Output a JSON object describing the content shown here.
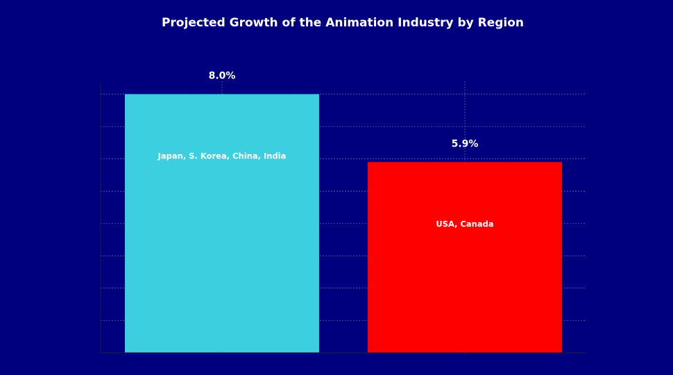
{
  "chart_data": {
    "type": "bar",
    "title": "Projected Growth of the Animation Industry by Region",
    "xlabel": "",
    "ylabel": "",
    "categories": [
      "Japan, S. Korea, China, India",
      "USA, Canada"
    ],
    "values": [
      8.0,
      5.9
    ],
    "value_labels": [
      "8.0%",
      "5.9%"
    ],
    "colors": [
      "#3bcfe0",
      "#ff0000"
    ],
    "ylim": [
      0,
      8.4
    ],
    "grid": true,
    "legend": "none",
    "background": "#00007f",
    "text_color": "#ffffff"
  }
}
